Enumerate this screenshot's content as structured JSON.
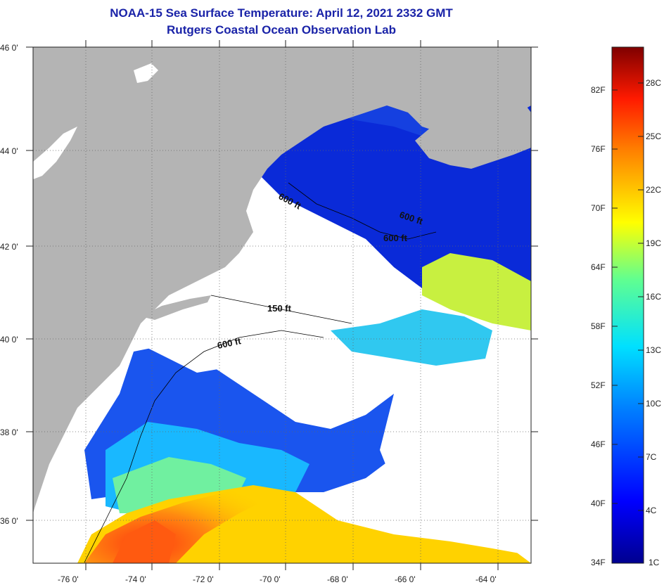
{
  "header": {
    "title": "NOAA-15 Sea Surface Temperature:  April 12, 2021 2332 GMT",
    "subtitle": "Rutgers Coastal Ocean Observation Lab"
  },
  "map": {
    "lat_labels": [
      "46 0'",
      "44 0'",
      "42 0'",
      "40 0'",
      "38 0'",
      "36 0'"
    ],
    "lon_labels": [
      "-76 0'",
      "-74 0'",
      "-72 0'",
      "-70 0'",
      "-68 0'",
      "-66 0'",
      "-64 0'"
    ],
    "contour_labels": [
      "600 ft",
      "600 ft",
      "600 ft",
      "150 ft",
      "600 ft"
    ],
    "colors": {
      "land": "#b4b4b4",
      "cloud": "#ffffff",
      "cold_water": "#0a2ad8"
    }
  },
  "colorbar": {
    "f_labels": [
      "82F",
      "76F",
      "70F",
      "64F",
      "58F",
      "52F",
      "46F",
      "40F",
      "34F"
    ],
    "c_labels": [
      "28C",
      "25C",
      "22C",
      "19C",
      "16C",
      "13C",
      "10C",
      "7C",
      "4C",
      "1C"
    ]
  }
}
